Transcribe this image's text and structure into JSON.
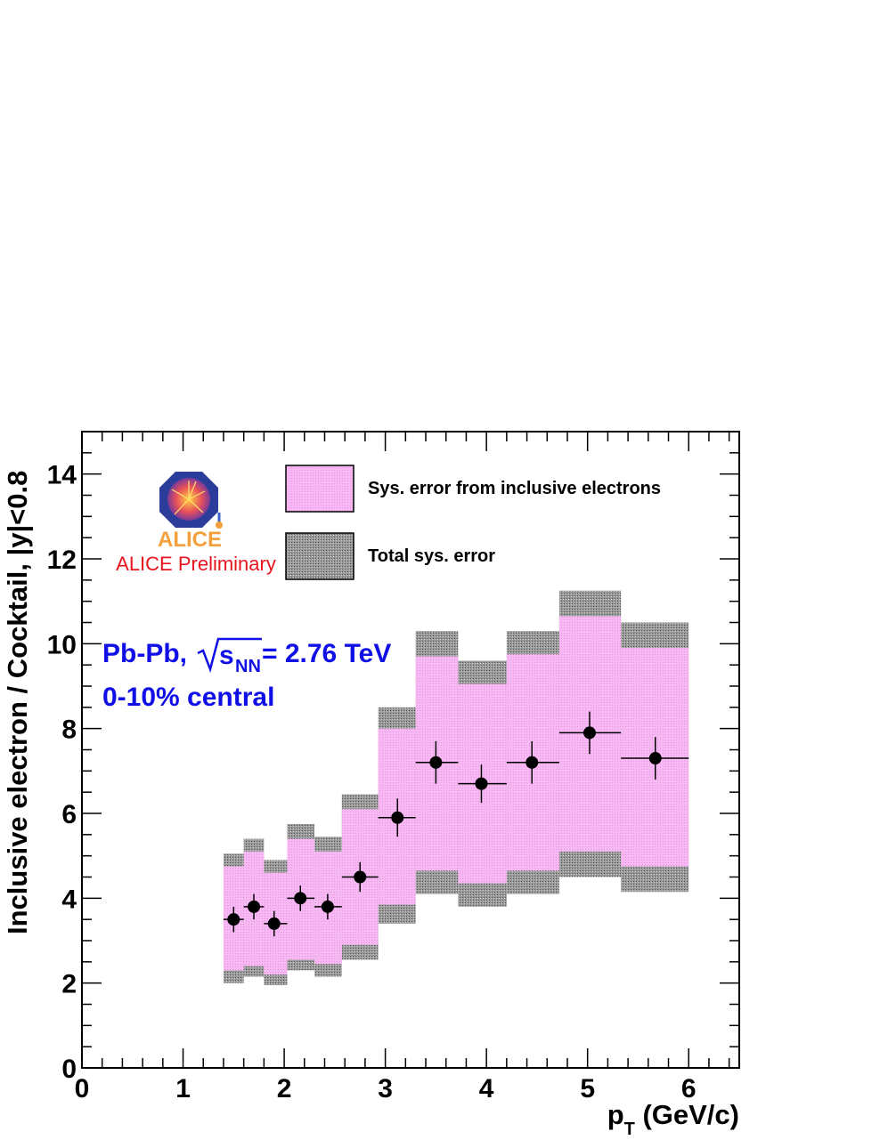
{
  "chart_data": {
    "type": "scatter",
    "title": "",
    "xlabel": "p",
    "xlabel_sub": "T",
    "xlabel_unit": " (GeV/c)",
    "ylabel": "Inclusive electron / Cocktail, |y|<0.8",
    "xlim": [
      0,
      6.5
    ],
    "ylim": [
      0,
      15
    ],
    "x_ticks": [
      0,
      1,
      2,
      3,
      4,
      5,
      6
    ],
    "y_ticks": [
      0,
      2,
      4,
      6,
      8,
      10,
      12,
      14
    ],
    "x_tick_labels": [
      "0",
      "1",
      "2",
      "3",
      "4",
      "5",
      "6"
    ],
    "y_tick_labels": [
      "0",
      "2",
      "4",
      "6",
      "8",
      "10",
      "12",
      "14"
    ],
    "grid": false,
    "legend_position": "top-right",
    "legend": [
      {
        "label": "Sys. error from inclusive electrons",
        "color": "#f7b4f3"
      },
      {
        "label": "Total sys. error",
        "color": "#8c8c8c"
      }
    ],
    "annotation_collision": "Pb-Pb,",
    "annotation_energy_sub": "NN",
    "annotation_energy_value": " = 2.76 TeV",
    "annotation_centrality": "0-10% central",
    "preliminary_label": "ALICE Preliminary",
    "logo_text": "ALICE",
    "points": [
      {
        "x": 1.5,
        "xlo": 1.4,
        "xhi": 1.6,
        "y": 3.5,
        "yerr": 0.3,
        "sys_lo": 2.3,
        "sys_hi": 4.75,
        "tot_lo": 2.0,
        "tot_hi": 5.05
      },
      {
        "x": 1.7,
        "xlo": 1.6,
        "xhi": 1.8,
        "y": 3.8,
        "yerr": 0.3,
        "sys_lo": 2.4,
        "sys_hi": 5.1,
        "tot_lo": 2.15,
        "tot_hi": 5.4
      },
      {
        "x": 1.9,
        "xlo": 1.8,
        "xhi": 2.03,
        "y": 3.4,
        "yerr": 0.3,
        "sys_lo": 2.2,
        "sys_hi": 4.6,
        "tot_lo": 1.95,
        "tot_hi": 4.9
      },
      {
        "x": 2.16,
        "xlo": 2.03,
        "xhi": 2.3,
        "y": 4.0,
        "yerr": 0.3,
        "sys_lo": 2.55,
        "sys_hi": 5.4,
        "tot_lo": 2.3,
        "tot_hi": 5.75
      },
      {
        "x": 2.43,
        "xlo": 2.3,
        "xhi": 2.57,
        "y": 3.8,
        "yerr": 0.3,
        "sys_lo": 2.45,
        "sys_hi": 5.1,
        "tot_lo": 2.15,
        "tot_hi": 5.45
      },
      {
        "x": 2.75,
        "xlo": 2.57,
        "xhi": 2.93,
        "y": 4.5,
        "yerr": 0.35,
        "sys_lo": 2.9,
        "sys_hi": 6.1,
        "tot_lo": 2.55,
        "tot_hi": 6.45
      },
      {
        "x": 3.12,
        "xlo": 2.93,
        "xhi": 3.3,
        "y": 5.9,
        "yerr": 0.45,
        "sys_lo": 3.85,
        "sys_hi": 8.0,
        "tot_lo": 3.4,
        "tot_hi": 8.5
      },
      {
        "x": 3.5,
        "xlo": 3.3,
        "xhi": 3.72,
        "y": 7.2,
        "yerr": 0.5,
        "sys_lo": 4.65,
        "sys_hi": 9.7,
        "tot_lo": 4.1,
        "tot_hi": 10.3
      },
      {
        "x": 3.95,
        "xlo": 3.72,
        "xhi": 4.2,
        "y": 6.7,
        "yerr": 0.45,
        "sys_lo": 4.35,
        "sys_hi": 9.05,
        "tot_lo": 3.8,
        "tot_hi": 9.6
      },
      {
        "x": 4.45,
        "xlo": 4.2,
        "xhi": 4.72,
        "y": 7.2,
        "yerr": 0.5,
        "sys_lo": 4.65,
        "sys_hi": 9.75,
        "tot_lo": 4.1,
        "tot_hi": 10.3
      },
      {
        "x": 5.02,
        "xlo": 4.72,
        "xhi": 5.33,
        "y": 7.9,
        "yerr": 0.5,
        "sys_lo": 5.1,
        "sys_hi": 10.65,
        "tot_lo": 4.5,
        "tot_hi": 11.25
      },
      {
        "x": 5.67,
        "xlo": 5.33,
        "xhi": 6.0,
        "y": 7.3,
        "yerr": 0.5,
        "sys_lo": 4.75,
        "sys_hi": 9.9,
        "tot_lo": 4.15,
        "tot_hi": 10.5
      }
    ]
  }
}
